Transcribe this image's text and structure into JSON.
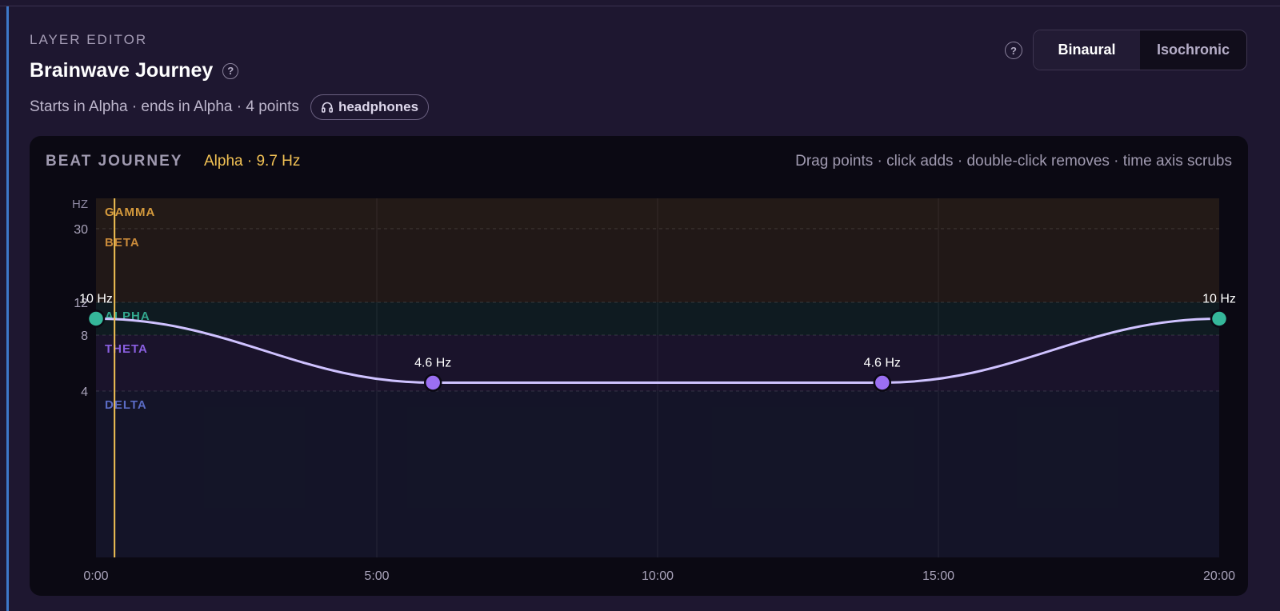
{
  "editor": {
    "eyebrow": "LAYER EDITOR",
    "title": "Brainwave Journey",
    "subtitle": "Starts in Alpha · ends in Alpha · 4 points",
    "badge_label": "headphones",
    "badge_icon": "headphones-icon",
    "help_icon": "question-circle-icon"
  },
  "mode_toggle": {
    "options": [
      "Binaural",
      "Isochronic"
    ],
    "selected": "Binaural"
  },
  "panel": {
    "title": "BEAT JOURNEY",
    "readout": "Alpha · 9.7 Hz",
    "hint": "Drag points · click adds · double-click removes · time axis scrubs"
  },
  "colors": {
    "accent_yellow": "#f1c154",
    "curve": "#cfc2ff",
    "point_alpha": "#35b79a",
    "point_theta": "#9b6ff2"
  },
  "chart_data": {
    "type": "line",
    "y_unit_label": "HZ",
    "y_ticks": [
      4,
      8,
      12,
      30
    ],
    "x_ticks": [
      "0:00",
      "5:00",
      "10:00",
      "15:00",
      "20:00"
    ],
    "x_range_minutes": [
      0,
      20
    ],
    "playhead_minute": 0.33,
    "bands": [
      {
        "name": "GAMMA",
        "from": 30,
        "to": 40,
        "color": "#d59a3c"
      },
      {
        "name": "BETA",
        "from": 12,
        "to": 30,
        "color": "#c98a3a"
      },
      {
        "name": "ALPHA",
        "from": 8,
        "to": 12,
        "color": "#32a88e"
      },
      {
        "name": "THETA",
        "from": 4,
        "to": 8,
        "color": "#8a5fe0"
      },
      {
        "name": "DELTA",
        "from": 0,
        "to": 4,
        "color": "#5a6bc4"
      }
    ],
    "points": [
      {
        "minute": 0,
        "hz": 10,
        "label": "10 Hz",
        "band": "alpha"
      },
      {
        "minute": 6,
        "hz": 4.6,
        "label": "4.6 Hz",
        "band": "theta"
      },
      {
        "minute": 14,
        "hz": 4.6,
        "label": "4.6 Hz",
        "band": "theta"
      },
      {
        "minute": 20,
        "hz": 10,
        "label": "10 Hz",
        "band": "alpha"
      }
    ]
  }
}
